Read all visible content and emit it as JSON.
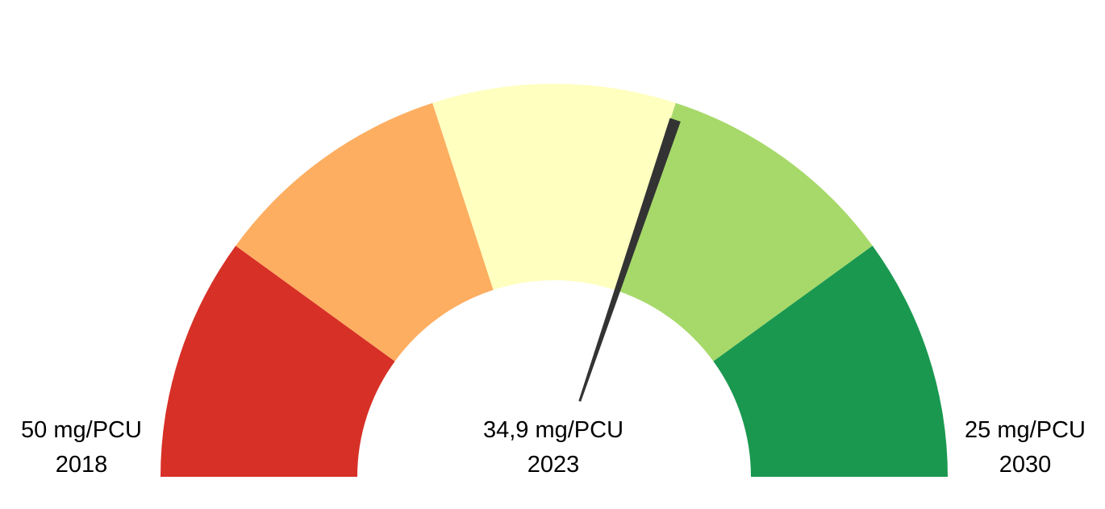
{
  "chart_data": {
    "type": "gauge",
    "min": {
      "value": 50,
      "unit": "mg/PCU",
      "label": "50 mg/PCU",
      "year": "2018"
    },
    "max": {
      "value": 25,
      "unit": "mg/PCU",
      "label": "25 mg/PCU",
      "year": "2030"
    },
    "current": {
      "value": 34.9,
      "unit": "mg/PCU",
      "label": "34,9 mg/PCU",
      "year": "2023"
    },
    "bands": [
      {
        "color": "#d73027"
      },
      {
        "color": "#fdae61"
      },
      {
        "color": "#ffffbf"
      },
      {
        "color": "#a6d96a"
      },
      {
        "color": "#1a9850"
      }
    ],
    "needle_color": "#333333"
  }
}
